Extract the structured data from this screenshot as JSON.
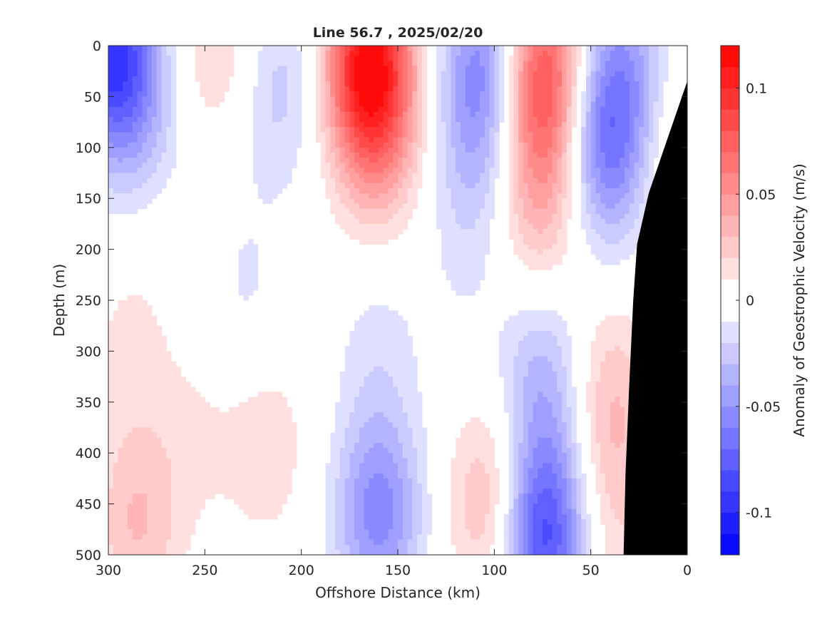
{
  "chart_data": {
    "type": "heatmap",
    "title": "Line 56.7 , 2025/02/20",
    "xlabel": "Offshore Distance (km)",
    "ylabel": "Depth (m)",
    "xlim": [
      300,
      0
    ],
    "ylim": [
      500,
      0
    ],
    "x_reversed": true,
    "y_reversed": true,
    "x_ticks": [
      300,
      250,
      200,
      150,
      100,
      50,
      0
    ],
    "y_ticks": [
      0,
      50,
      100,
      150,
      200,
      250,
      300,
      350,
      400,
      450,
      500
    ],
    "colorbar": {
      "label": "Anomaly of Geostrophic Velocity (m/s)",
      "range": [
        -0.12,
        0.12
      ],
      "levels": 24,
      "ticks": [
        0.1,
        0.05,
        0,
        -0.05,
        -0.1
      ],
      "tick_labels": [
        "0.1",
        "0.05",
        "0",
        "-0.05",
        "-0.1"
      ],
      "colormap": "blue-white-red"
    },
    "bathymetry_color": "#000000",
    "bathymetry_profile": [
      [
        0,
        35
      ],
      [
        10,
        90
      ],
      [
        20,
        145
      ],
      [
        26,
        195
      ],
      [
        28,
        250
      ],
      [
        30,
        330
      ],
      [
        32,
        420
      ],
      [
        33,
        500
      ]
    ],
    "cores": [
      {
        "x": 300,
        "y": 0,
        "value": -0.085
      },
      {
        "x": 285,
        "y": 60,
        "value": -0.03
      },
      {
        "x": 240,
        "y": 60,
        "value": -0.012
      },
      {
        "x": 243,
        "y": 20,
        "value": 0.03
      },
      {
        "x": 210,
        "y": 40,
        "value": -0.025
      },
      {
        "x": 228,
        "y": 250,
        "value": -0.012
      },
      {
        "x": 165,
        "y": 15,
        "value": 0.105
      },
      {
        "x": 160,
        "y": 90,
        "value": 0.035
      },
      {
        "x": 115,
        "y": 210,
        "value": -0.008
      },
      {
        "x": 160,
        "y": 300,
        "value": -0.014
      },
      {
        "x": 160,
        "y": 460,
        "value": -0.055
      },
      {
        "x": 105,
        "y": 20,
        "value": -0.055
      },
      {
        "x": 110,
        "y": 110,
        "value": -0.02
      },
      {
        "x": 100,
        "y": 450,
        "value": 0.04
      },
      {
        "x": 75,
        "y": 30,
        "value": 0.085
      },
      {
        "x": 76,
        "y": 150,
        "value": 0.035
      },
      {
        "x": 75,
        "y": 480,
        "value": -0.09
      },
      {
        "x": 75,
        "y": 330,
        "value": -0.035
      },
      {
        "x": 42,
        "y": 100,
        "value": -0.06
      },
      {
        "x": 36,
        "y": 15,
        "value": -0.03
      },
      {
        "x": 40,
        "y": 350,
        "value": 0.03
      },
      {
        "x": 40,
        "y": 470,
        "value": 0.018
      },
      {
        "x": 8,
        "y": 80,
        "value": 0.03
      },
      {
        "x": 285,
        "y": 470,
        "value": 0.03
      },
      {
        "x": 290,
        "y": 300,
        "value": 0.012
      },
      {
        "x": 255,
        "y": 380,
        "value": 0.01
      },
      {
        "x": 218,
        "y": 390,
        "value": 0.018
      },
      {
        "x": 275,
        "y": 200,
        "value": 0.003
      },
      {
        "x": 15,
        "y": 40,
        "value": -0.02
      }
    ]
  }
}
